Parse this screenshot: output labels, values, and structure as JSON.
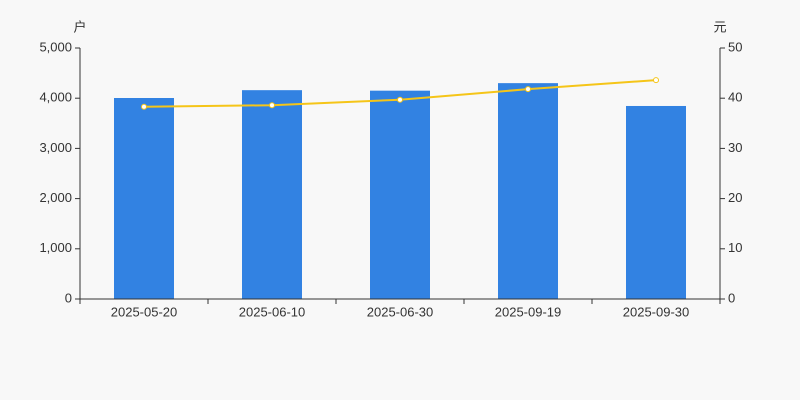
{
  "chart_data": {
    "type": "bar_line",
    "y_label": "户",
    "y2_label": "元",
    "categories": [
      "2025-05-20",
      "2025-06-10",
      "2025-06-30",
      "2025-09-19",
      "2025-09-30"
    ],
    "series": [
      {
        "type": "bar",
        "color": "#3282e2",
        "values": [
          4004,
          4160,
          4150,
          4300,
          3845
        ]
      },
      {
        "type": "line",
        "axis": "y2",
        "color": "#f5c518",
        "values": [
          38.3,
          38.6,
          39.7,
          41.8,
          43.6
        ]
      }
    ],
    "ylim": [
      0,
      5000
    ],
    "yticks": [
      0,
      {
        "value": 1000,
        "label": "1,000"
      },
      {
        "value": 2000,
        "label": "2,000"
      },
      {
        "value": 3000,
        "label": "3,000"
      },
      {
        "value": 4000,
        "label": "4,000"
      },
      {
        "value": 5000,
        "label": "5,000"
      }
    ],
    "y2lim": [
      0,
      50
    ],
    "y2ticks": [
      0,
      10,
      20,
      30,
      40,
      50
    ]
  }
}
